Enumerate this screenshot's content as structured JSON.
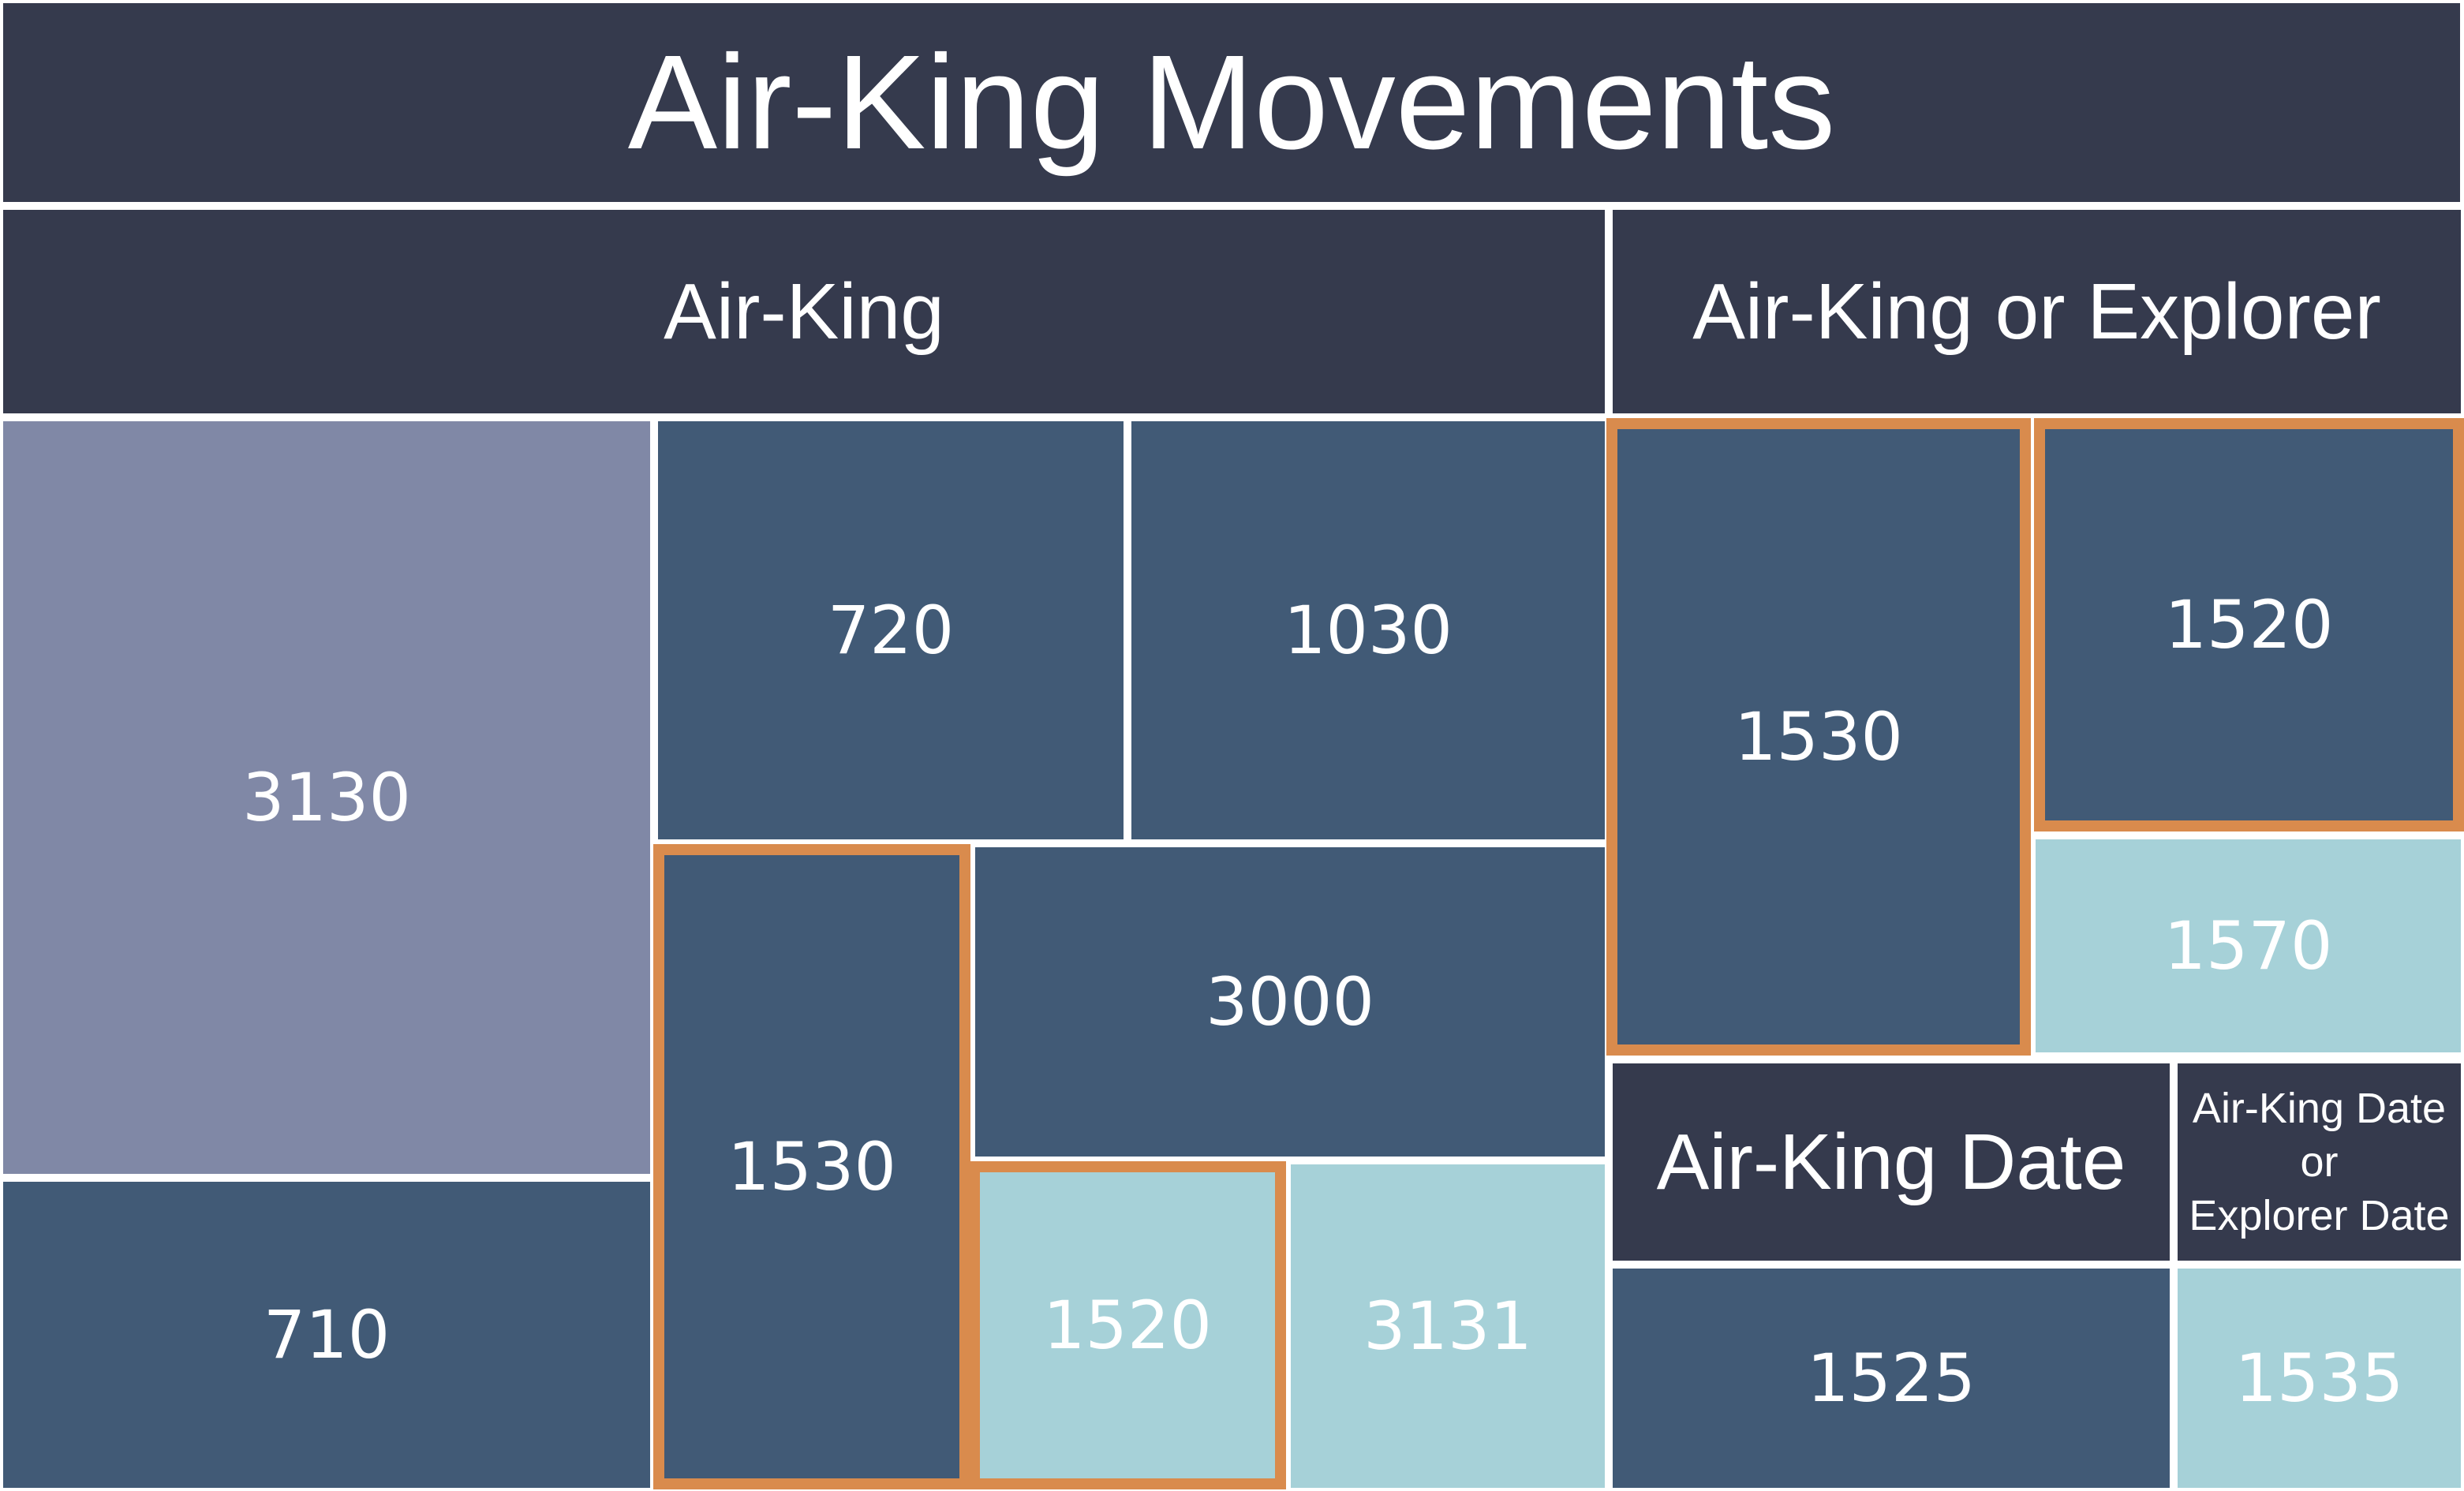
{
  "title": "Air-King Movements",
  "colors": {
    "header": "#353a4d",
    "dark_tile": "#415a76",
    "grey_tile": "#8088a6",
    "light_tile": "#a6d1d8",
    "highlight_border": "#d98b4d"
  },
  "groups": {
    "air_king": {
      "label": "Air-King",
      "tiles": {
        "t3130": "3130",
        "t710": "710",
        "t720": "720",
        "t1030": "1030",
        "t1530": "1530",
        "t3000": "3000",
        "t1520": "1520",
        "t3131": "3131"
      }
    },
    "air_king_or_explorer": {
      "label": "Air-King or Explorer",
      "tiles": {
        "t1530": "1530",
        "t1520": "1520",
        "t1570": "1570"
      }
    },
    "air_king_date": {
      "label": "Air-King Date",
      "tiles": {
        "t1525": "1525"
      }
    },
    "air_king_date_or_explorer_date": {
      "label_line1": "Air-King Date",
      "label_line2": "or",
      "label_line3": "Explorer Date",
      "tiles": {
        "t1535": "1535"
      }
    }
  }
}
